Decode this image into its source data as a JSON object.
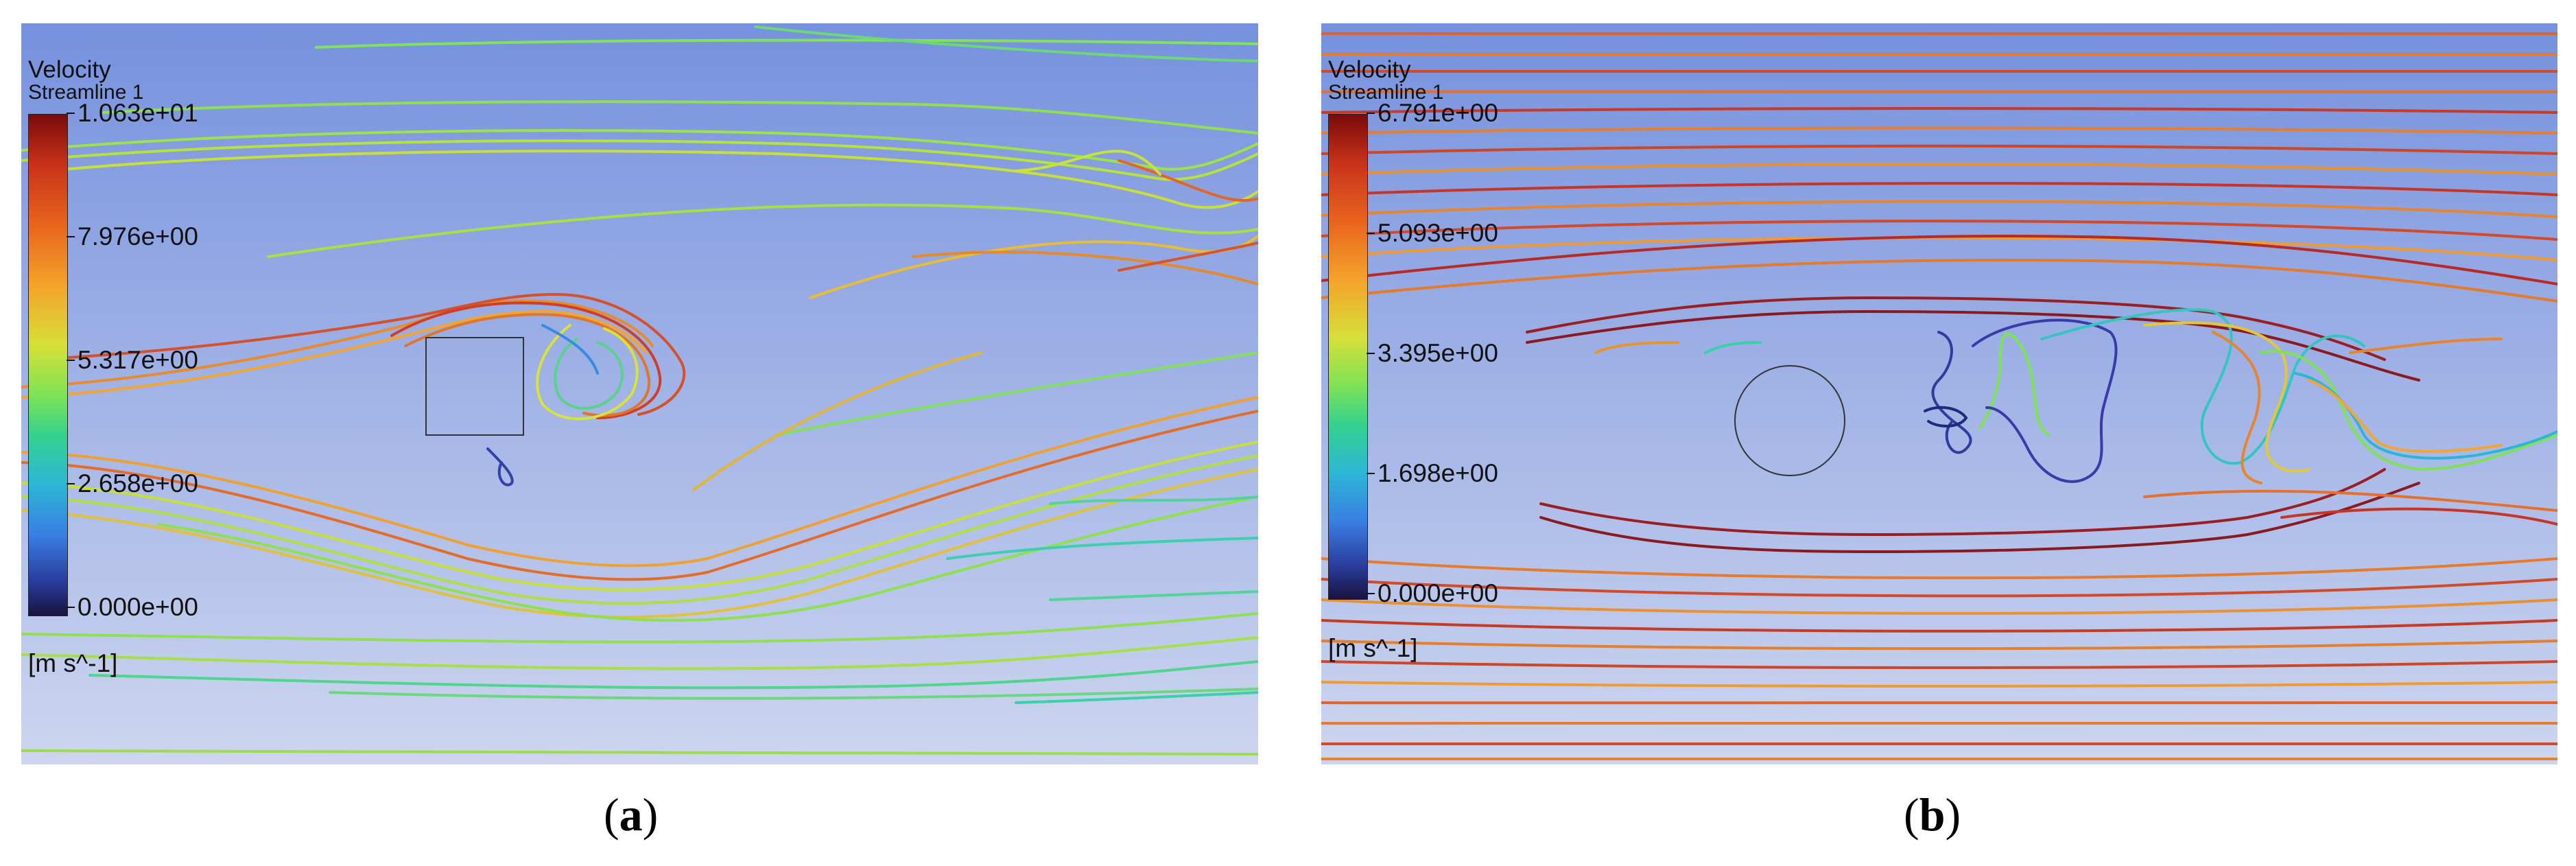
{
  "panels": [
    {
      "id": "a",
      "caption_open": "(",
      "caption_letter": "a",
      "caption_close": ")",
      "legend": {
        "title": "Velocity",
        "subtitle": "Streamline 1",
        "ticks": [
          "1.063e+01",
          "7.976e+00",
          "5.317e+00",
          "2.658e+00",
          "0.000e+00"
        ],
        "unit": "[m s^-1]"
      },
      "obstacle": "square",
      "background_top": "#7a95de",
      "background_bottom": "#c9d3ee"
    },
    {
      "id": "b",
      "caption_open": "(",
      "caption_letter": "b",
      "caption_close": ")",
      "legend": {
        "title": "Velocity",
        "subtitle": "Streamline 1",
        "ticks": [
          "6.791e+00",
          "5.093e+00",
          "3.395e+00",
          "1.698e+00",
          "0.000e+00"
        ],
        "unit": "[m s^-1]"
      },
      "obstacle": "circle",
      "background_top": "#7a95de",
      "background_bottom": "#c9d3ee"
    }
  ]
}
